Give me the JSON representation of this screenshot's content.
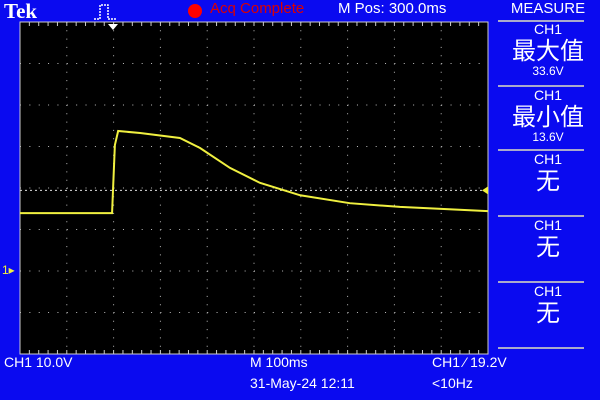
{
  "header": {
    "brand": "Tek",
    "status": "Acq Complete",
    "status_color": "#dd0000",
    "mpos": "M Pos: 300.0ms",
    "trigger_icon": "pulse-trigger-icon"
  },
  "measure": {
    "title": "MEASURE",
    "items": [
      {
        "channel": "CH1",
        "label": "最大值",
        "value": "33.6V"
      },
      {
        "channel": "CH1",
        "label": "最小值",
        "value": "13.6V"
      },
      {
        "channel": "CH1",
        "label": "无",
        "value": ""
      },
      {
        "channel": "CH1",
        "label": "无",
        "value": ""
      },
      {
        "channel": "CH1",
        "label": "无",
        "value": ""
      }
    ]
  },
  "footer": {
    "ch_scale": "CH1  10.0V",
    "timebase": "M 100ms",
    "datetime": "31-May-24 12:11",
    "trigger": "CH1 ⁄ 19.2V",
    "freq": "<10Hz"
  },
  "colors": {
    "background": "#0a0af0",
    "screen": "#000000",
    "trace": "#f0f040",
    "grid": "#c8c8c8"
  },
  "chart_data": {
    "type": "line",
    "x_unit": "ms (relative to trigger)",
    "y_unit": "V",
    "volts_per_div": 10,
    "ms_per_div": 100,
    "trigger_level": 19.2,
    "series": [
      {
        "points": [
          [
            -199,
            13.7
          ],
          [
            -2,
            13.7
          ],
          [
            4,
            30.1
          ],
          [
            11,
            33.5
          ],
          [
            58,
            33.0
          ],
          [
            143,
            31.8
          ],
          [
            186,
            29.4
          ],
          [
            250,
            24.6
          ],
          [
            314,
            21.0
          ],
          [
            400,
            18.0
          ],
          [
            506,
            16.1
          ],
          [
            613,
            15.2
          ],
          [
            801,
            14.2
          ]
        ]
      }
    ]
  }
}
